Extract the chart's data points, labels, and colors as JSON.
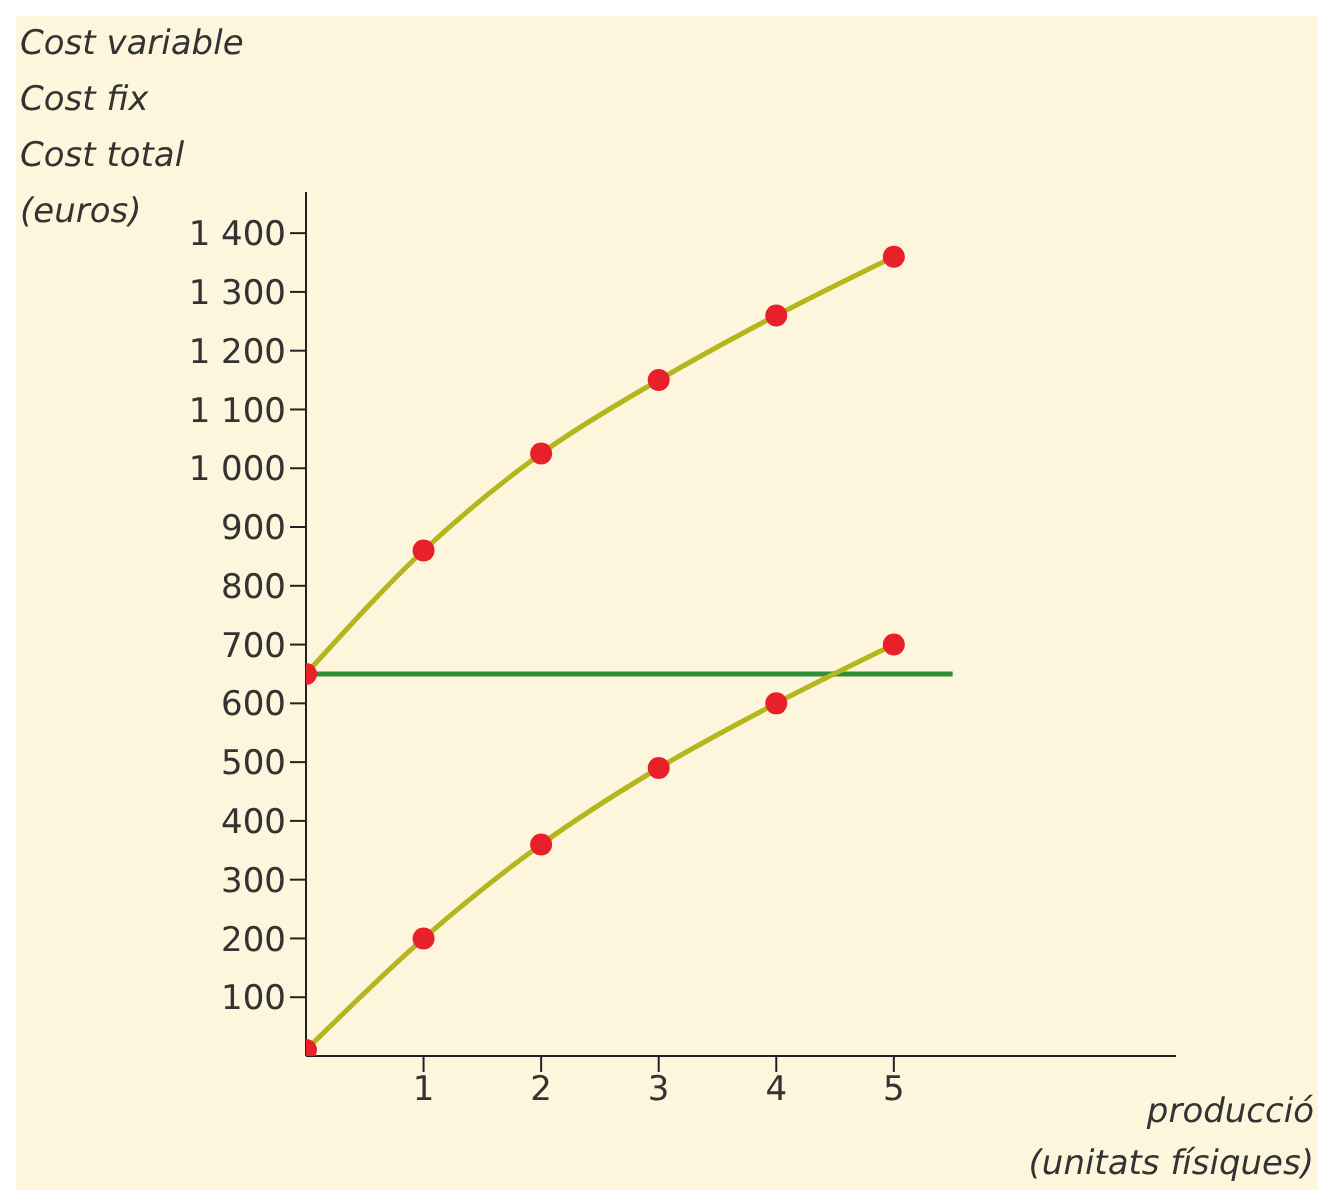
{
  "chart_data": {
    "type": "line",
    "ylabel": "Cost variable\nCost fix\nCost total\n(euros)",
    "xlabel": "producció\n(unitats físiques)",
    "xlim": [
      0,
      7.4
    ],
    "xticks": [
      1,
      2,
      3,
      4,
      5
    ],
    "ylim": [
      0,
      1470
    ],
    "yticks": [
      {
        "value": 100,
        "label": "100"
      },
      {
        "value": 200,
        "label": "200"
      },
      {
        "value": 300,
        "label": "300"
      },
      {
        "value": 400,
        "label": "400"
      },
      {
        "value": 500,
        "label": "500"
      },
      {
        "value": 600,
        "label": "600"
      },
      {
        "value": 700,
        "label": "700"
      },
      {
        "value": 800,
        "label": "800"
      },
      {
        "value": 900,
        "label": "900"
      },
      {
        "value": 1000,
        "label": "1 000"
      },
      {
        "value": 1100,
        "label": "1 100"
      },
      {
        "value": 1200,
        "label": "1 200"
      },
      {
        "value": 1300,
        "label": "1 300"
      },
      {
        "value": 1400,
        "label": "1 400"
      }
    ],
    "grid": false,
    "legend": false,
    "series": [
      {
        "color": "#b5b51e",
        "marker": "circle",
        "colors": [
          "#e8202a",
          "#e8202a",
          "#e8202a",
          "#e8202a",
          "#e8202a",
          "#e8202a"
        ],
        "x": [
          0,
          1,
          2,
          3,
          4,
          5
        ],
        "values": [
          650,
          860,
          1025,
          1150,
          1260,
          1360
        ]
      },
      {
        "color": "#2e8f3a",
        "marker": "none",
        "x": [
          0,
          5.5
        ],
        "values": [
          650,
          650
        ]
      },
      {
        "color": "#b5b51e",
        "marker": "circle",
        "colors": [
          "#e8202a",
          "#e8202a",
          "#e8202a",
          "#e8202a",
          "#e8202a",
          "#e8202a"
        ],
        "x": [
          0,
          1,
          2,
          3,
          4,
          5
        ],
        "values": [
          10,
          200,
          360,
          490,
          600,
          700
        ]
      }
    ]
  }
}
